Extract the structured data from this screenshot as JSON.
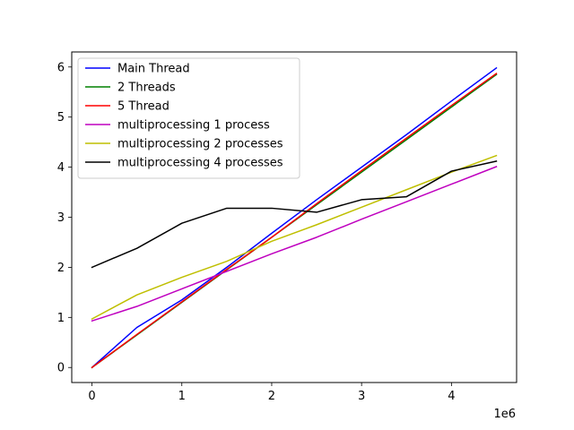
{
  "chart_data": {
    "type": "line",
    "title": "",
    "xlabel": "",
    "ylabel": "",
    "x_scale_label": "1e6",
    "xlim": [
      -225000,
      4725000
    ],
    "ylim": [
      -0.3,
      6.3
    ],
    "x_ticks": [
      0,
      1000000,
      2000000,
      3000000,
      4000000
    ],
    "x_tick_labels": [
      "0",
      "1",
      "2",
      "3",
      "4"
    ],
    "y_ticks": [
      0,
      1,
      2,
      3,
      4,
      5,
      6
    ],
    "y_tick_labels": [
      "0",
      "1",
      "2",
      "3",
      "4",
      "5",
      "6"
    ],
    "grid": false,
    "legend_position": "top-left",
    "x": [
      0,
      500000,
      1000000,
      1500000,
      2000000,
      2500000,
      3000000,
      3500000,
      4000000,
      4500000
    ],
    "series": [
      {
        "name": "Main Thread",
        "color": "#0000ff",
        "values": [
          0,
          0.8,
          1.35,
          2.0,
          2.68,
          3.35,
          4.0,
          4.65,
          5.32,
          5.98
        ]
      },
      {
        "name": "2 Threads",
        "color": "#008000",
        "values": [
          0,
          0.65,
          1.3,
          1.95,
          2.6,
          3.25,
          3.9,
          4.55,
          5.2,
          5.85
        ]
      },
      {
        "name": "5 Thread",
        "color": "#ff0000",
        "values": [
          0,
          0.66,
          1.31,
          1.96,
          2.6,
          3.27,
          3.93,
          4.58,
          5.23,
          5.87
        ]
      },
      {
        "name": "multiprocessing 1 process",
        "color": "#bf00bf",
        "values": [
          0.93,
          1.22,
          1.57,
          1.92,
          2.27,
          2.6,
          2.96,
          3.31,
          3.66,
          4.01
        ]
      },
      {
        "name": "multiprocessing 2 processes",
        "color": "#bfbf00",
        "values": [
          0.97,
          1.45,
          1.8,
          2.12,
          2.52,
          2.85,
          3.2,
          3.55,
          3.9,
          4.23
        ]
      },
      {
        "name": "multiprocessing 4 processes",
        "color": "#000000",
        "values": [
          2.0,
          2.38,
          2.88,
          3.18,
          3.18,
          3.1,
          3.35,
          3.41,
          3.92,
          4.12
        ]
      }
    ]
  }
}
